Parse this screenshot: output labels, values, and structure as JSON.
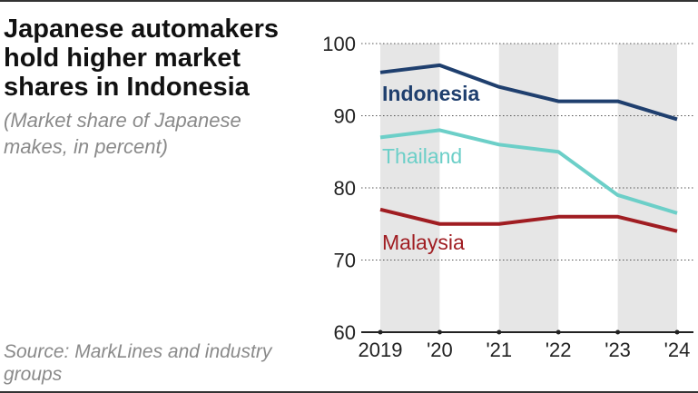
{
  "title": "Japanese automakers hold higher market shares in Indonesia",
  "subtitle": "(Market share of Japanese makes, in percent)",
  "source": "Source: MarkLines and industry groups",
  "colors": {
    "Indonesia": "#1f3f6e",
    "Thailand": "#6ccfc8",
    "Malaysia": "#a01d22",
    "band": "#e6e6e6",
    "grid": "#555555",
    "axis": "#222222"
  },
  "chart_data": {
    "type": "line",
    "x": [
      "2019",
      "'20",
      "'21",
      "'22",
      "'23",
      "'24"
    ],
    "ylim": [
      60,
      100
    ],
    "yticks": [
      60,
      70,
      80,
      90,
      100
    ],
    "grid": true,
    "series": [
      {
        "name": "Indonesia",
        "values": [
          96,
          97,
          94,
          92,
          92,
          89.5
        ]
      },
      {
        "name": "Thailand",
        "values": [
          87,
          88,
          86,
          85,
          79,
          76.5
        ]
      },
      {
        "name": "Malaysia",
        "values": [
          77,
          75,
          75,
          76,
          76,
          74
        ]
      }
    ]
  }
}
